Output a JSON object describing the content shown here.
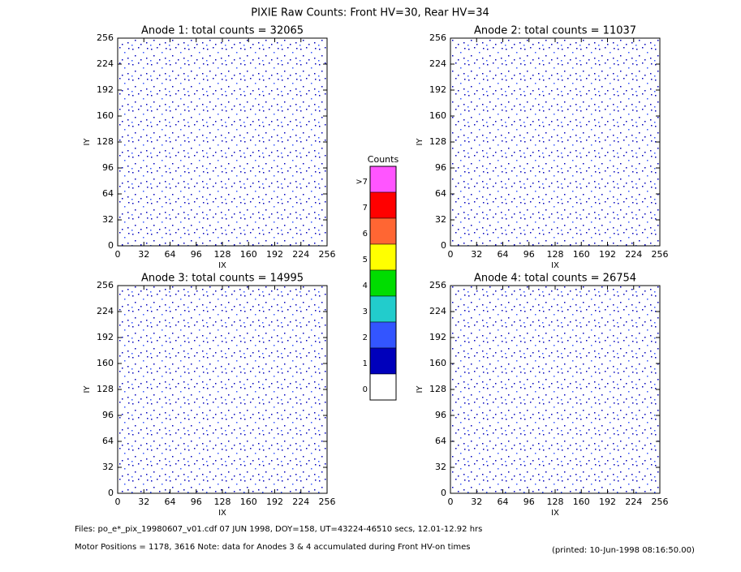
{
  "title": "PIXIE Raw Counts:  Front HV=30, Rear HV=34",
  "chart_data": [
    {
      "type": "heatmap",
      "title": "Anode 1: total counts = 32065",
      "xlabel": "IX",
      "ylabel": "IY",
      "xlim": [
        0,
        256
      ],
      "ylim": [
        0,
        256
      ],
      "xticks": [
        0,
        32,
        64,
        96,
        128,
        160,
        192,
        224,
        256
      ],
      "yticks": [
        0,
        32,
        64,
        96,
        128,
        160,
        192,
        224,
        256
      ]
    },
    {
      "type": "heatmap",
      "title": "Anode 2: total counts = 11037",
      "xlabel": "IX",
      "ylabel": "IY",
      "xlim": [
        0,
        256
      ],
      "ylim": [
        0,
        256
      ],
      "xticks": [
        0,
        32,
        64,
        96,
        128,
        160,
        192,
        224,
        256
      ],
      "yticks": [
        0,
        32,
        64,
        96,
        128,
        160,
        192,
        224,
        256
      ]
    },
    {
      "type": "heatmap",
      "title": "Anode 3: total counts = 14995",
      "xlabel": "IX",
      "ylabel": "IY",
      "xlim": [
        0,
        256
      ],
      "ylim": [
        0,
        256
      ],
      "xticks": [
        0,
        32,
        64,
        96,
        128,
        160,
        192,
        224,
        256
      ],
      "yticks": [
        0,
        32,
        64,
        96,
        128,
        160,
        192,
        224,
        256
      ]
    },
    {
      "type": "heatmap",
      "title": "Anode 4: total counts = 26754",
      "xlabel": "IX",
      "ylabel": "IY",
      "xlim": [
        0,
        256
      ],
      "ylim": [
        0,
        256
      ],
      "xticks": [
        0,
        32,
        64,
        96,
        128,
        160,
        192,
        224,
        256
      ],
      "yticks": [
        0,
        32,
        64,
        96,
        128,
        160,
        192,
        224,
        256
      ]
    }
  ],
  "colorbar": {
    "title": "Counts",
    "labels": [
      ">7",
      "7",
      "6",
      "5",
      "4",
      "3",
      "2",
      "1",
      "0"
    ],
    "colors": [
      "#ff55ff",
      "#ff0000",
      "#ff6633",
      "#ffff00",
      "#00dd00",
      "#22cccc",
      "#3355ff",
      "#0000bb",
      "#ffffff"
    ]
  },
  "footer": {
    "files": "Files: po_e*_pix_19980607_v01.cdf     07 JUN 1998, DOY=158, UT=43224-46510 secs, 12.01-12.92 hrs",
    "motor": "Motor Positions = 1178, 3616    Note: data for Anodes 3 & 4 accumulated during Front HV-on times",
    "printed": "(printed: 10-Jun-1998 08:16:50.00)"
  }
}
